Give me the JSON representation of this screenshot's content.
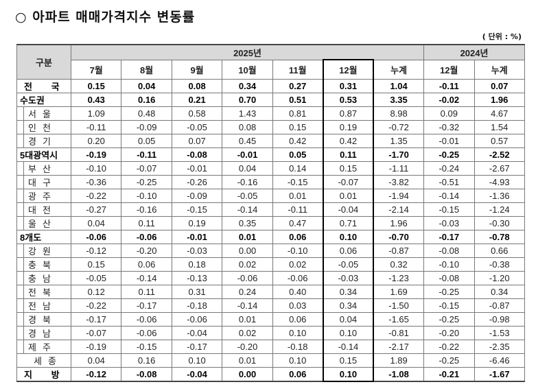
{
  "title": "○ 아파트 매매가격지수 변동률",
  "unit": "( 단위 : %)",
  "header": {
    "category": "구분",
    "year_2025": "2025년",
    "year_2024": "2024년",
    "columns": [
      "7월",
      "8월",
      "9월",
      "10월",
      "11월",
      "12월",
      "누계",
      "12월",
      "누계"
    ]
  },
  "rows": [
    {
      "label": "전 국",
      "type": "bold",
      "values": [
        "0.15",
        "0.04",
        "0.08",
        "0.34",
        "0.27",
        "0.31",
        "1.04",
        "-0.11",
        "0.07"
      ]
    },
    {
      "label": "수도권",
      "type": "bold",
      "values": [
        "0.43",
        "0.16",
        "0.21",
        "0.70",
        "0.51",
        "0.53",
        "3.35",
        "-0.02",
        "1.96"
      ]
    },
    {
      "label": "서울",
      "type": "sub",
      "values": [
        "1.09",
        "0.48",
        "0.58",
        "1.43",
        "0.81",
        "0.87",
        "8.98",
        "0.09",
        "4.67"
      ]
    },
    {
      "label": "인천",
      "type": "sub",
      "values": [
        "-0.11",
        "-0.09",
        "-0.05",
        "0.08",
        "0.15",
        "0.19",
        "-0.72",
        "-0.32",
        "1.54"
      ]
    },
    {
      "label": "경기",
      "type": "sub",
      "values": [
        "0.20",
        "0.05",
        "0.07",
        "0.45",
        "0.42",
        "0.42",
        "1.35",
        "-0.01",
        "0.57"
      ]
    },
    {
      "label": "5대광역시",
      "type": "bold",
      "values": [
        "-0.19",
        "-0.11",
        "-0.08",
        "-0.01",
        "0.05",
        "0.11",
        "-1.70",
        "-0.25",
        "-2.52"
      ]
    },
    {
      "label": "부산",
      "type": "sub",
      "values": [
        "-0.10",
        "-0.07",
        "-0.01",
        "0.04",
        "0.14",
        "0.15",
        "-1.11",
        "-0.24",
        "-2.67"
      ]
    },
    {
      "label": "대구",
      "type": "sub",
      "values": [
        "-0.36",
        "-0.25",
        "-0.26",
        "-0.16",
        "-0.15",
        "-0.07",
        "-3.82",
        "-0.51",
        "-4.93"
      ]
    },
    {
      "label": "광주",
      "type": "sub",
      "values": [
        "-0.22",
        "-0.10",
        "-0.09",
        "-0.05",
        "0.01",
        "0.01",
        "-1.94",
        "-0.14",
        "-1.36"
      ]
    },
    {
      "label": "대전",
      "type": "sub",
      "values": [
        "-0.27",
        "-0.16",
        "-0.15",
        "-0.14",
        "-0.11",
        "-0.04",
        "-2.14",
        "-0.15",
        "-1.24"
      ]
    },
    {
      "label": "울산",
      "type": "sub",
      "values": [
        "0.04",
        "0.11",
        "0.19",
        "0.35",
        "0.47",
        "0.71",
        "1.96",
        "-0.03",
        "-0.30"
      ]
    },
    {
      "label": "8개도",
      "type": "bold",
      "values": [
        "-0.06",
        "-0.06",
        "-0.01",
        "0.01",
        "0.06",
        "0.10",
        "-0.70",
        "-0.17",
        "-0.78"
      ]
    },
    {
      "label": "강원",
      "type": "sub",
      "values": [
        "-0.12",
        "-0.20",
        "-0.03",
        "0.00",
        "-0.10",
        "0.06",
        "-0.87",
        "-0.08",
        "0.66"
      ]
    },
    {
      "label": "충북",
      "type": "sub",
      "values": [
        "0.15",
        "0.06",
        "0.18",
        "0.02",
        "0.02",
        "-0.05",
        "0.32",
        "-0.10",
        "-0.38"
      ]
    },
    {
      "label": "충남",
      "type": "sub",
      "values": [
        "-0.05",
        "-0.14",
        "-0.13",
        "-0.06",
        "-0.06",
        "-0.03",
        "-1.23",
        "-0.08",
        "-1.20"
      ]
    },
    {
      "label": "전북",
      "type": "sub",
      "values": [
        "0.12",
        "0.11",
        "0.31",
        "0.24",
        "0.40",
        "0.34",
        "1.69",
        "-0.25",
        "0.34"
      ]
    },
    {
      "label": "전남",
      "type": "sub",
      "values": [
        "-0.22",
        "-0.17",
        "-0.18",
        "-0.14",
        "0.03",
        "0.34",
        "-1.50",
        "-0.15",
        "-0.87"
      ]
    },
    {
      "label": "경북",
      "type": "sub",
      "values": [
        "-0.17",
        "-0.06",
        "-0.06",
        "0.01",
        "0.06",
        "0.04",
        "-1.65",
        "-0.25",
        "-0.98"
      ]
    },
    {
      "label": "경남",
      "type": "sub",
      "values": [
        "-0.07",
        "-0.06",
        "-0.04",
        "0.02",
        "0.10",
        "0.10",
        "-0.81",
        "-0.20",
        "-1.53"
      ]
    },
    {
      "label": "제주",
      "type": "sub",
      "values": [
        "-0.19",
        "-0.15",
        "-0.17",
        "-0.20",
        "-0.18",
        "-0.14",
        "-2.17",
        "-0.22",
        "-2.35"
      ]
    },
    {
      "label": "세종",
      "type": "sejong",
      "values": [
        "0.04",
        "0.16",
        "0.10",
        "0.01",
        "0.10",
        "0.15",
        "1.89",
        "-0.25",
        "-6.46"
      ]
    },
    {
      "label": "지 방",
      "type": "bold",
      "values": [
        "-0.12",
        "-0.08",
        "-0.04",
        "0.00",
        "0.06",
        "0.10",
        "-1.08",
        "-0.21",
        "-1.67"
      ]
    }
  ]
}
